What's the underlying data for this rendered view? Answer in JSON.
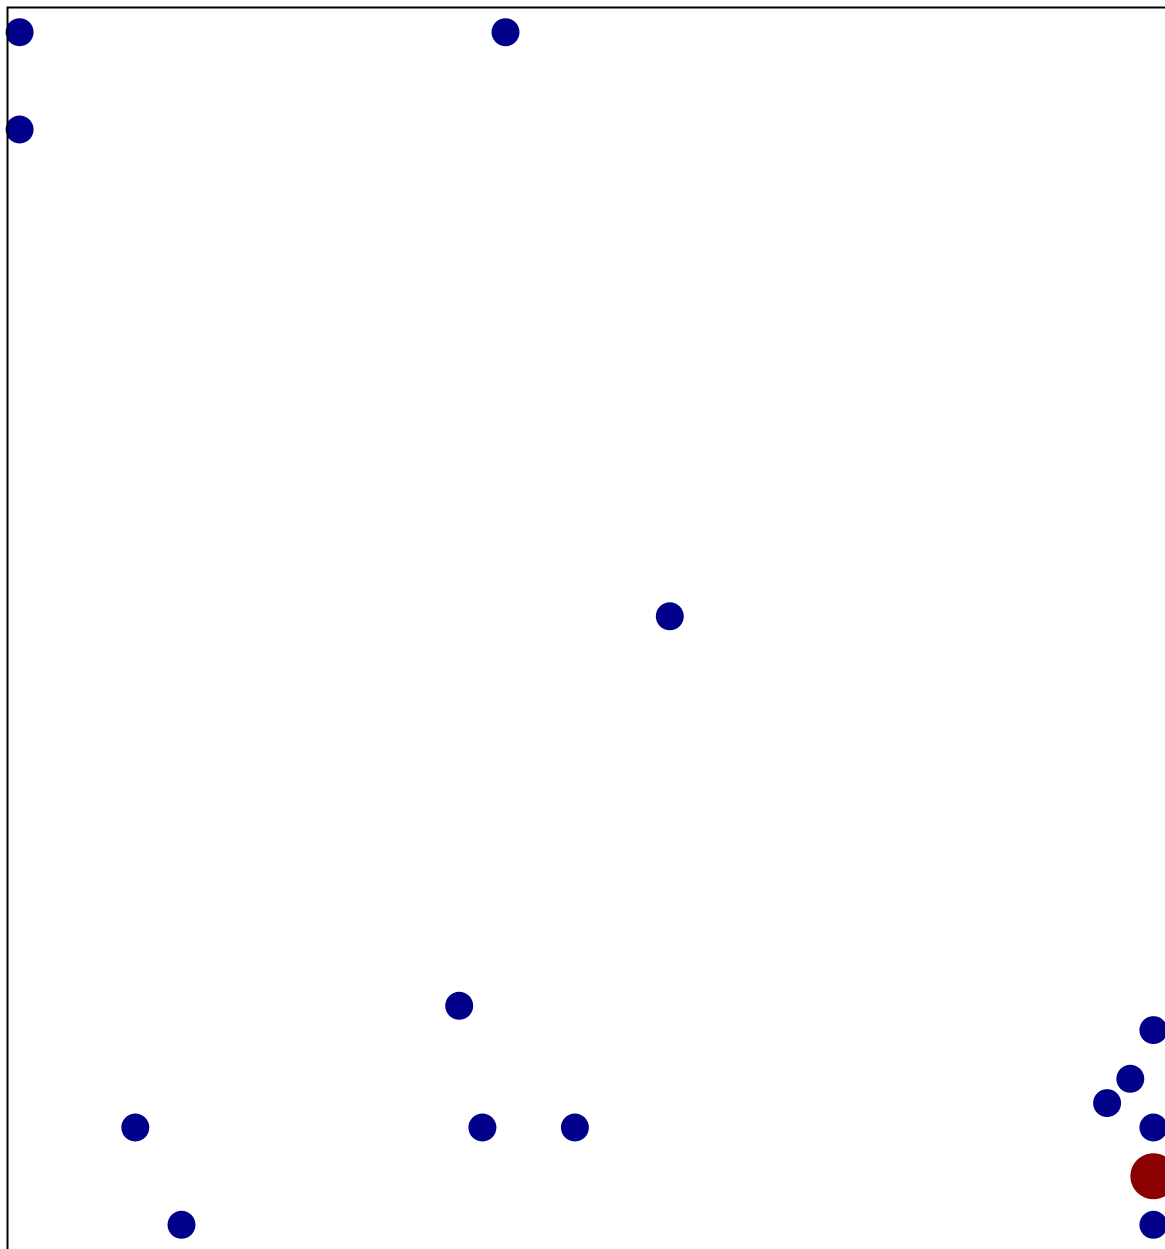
{
  "chart_data": {
    "type": "scatter",
    "title": "",
    "xlabel": "",
    "ylabel": "",
    "grid": false,
    "legend": "none",
    "xlim": [
      0,
      1
    ],
    "ylim": [
      0,
      1
    ],
    "colors": {
      "default": "#00008b",
      "highlight": "#8b0000",
      "frame": "#000000"
    },
    "points": [
      {
        "x": 0.01,
        "y": 0.99,
        "highlight": false
      },
      {
        "x": 0.43,
        "y": 0.99,
        "highlight": false
      },
      {
        "x": 0.01,
        "y": 0.91,
        "highlight": false
      },
      {
        "x": 0.572,
        "y": 0.51,
        "highlight": false
      },
      {
        "x": 0.39,
        "y": 0.19,
        "highlight": false
      },
      {
        "x": 0.99,
        "y": 0.17,
        "highlight": false
      },
      {
        "x": 0.97,
        "y": 0.13,
        "highlight": false
      },
      {
        "x": 0.95,
        "y": 0.11,
        "highlight": false
      },
      {
        "x": 0.11,
        "y": 0.09,
        "highlight": false
      },
      {
        "x": 0.41,
        "y": 0.09,
        "highlight": false
      },
      {
        "x": 0.49,
        "y": 0.09,
        "highlight": false
      },
      {
        "x": 0.99,
        "y": 0.09,
        "highlight": false
      },
      {
        "x": 0.99,
        "y": 0.05,
        "highlight": true
      },
      {
        "x": 0.15,
        "y": 0.01,
        "highlight": false
      },
      {
        "x": 0.99,
        "y": 0.01,
        "highlight": false
      }
    ]
  }
}
